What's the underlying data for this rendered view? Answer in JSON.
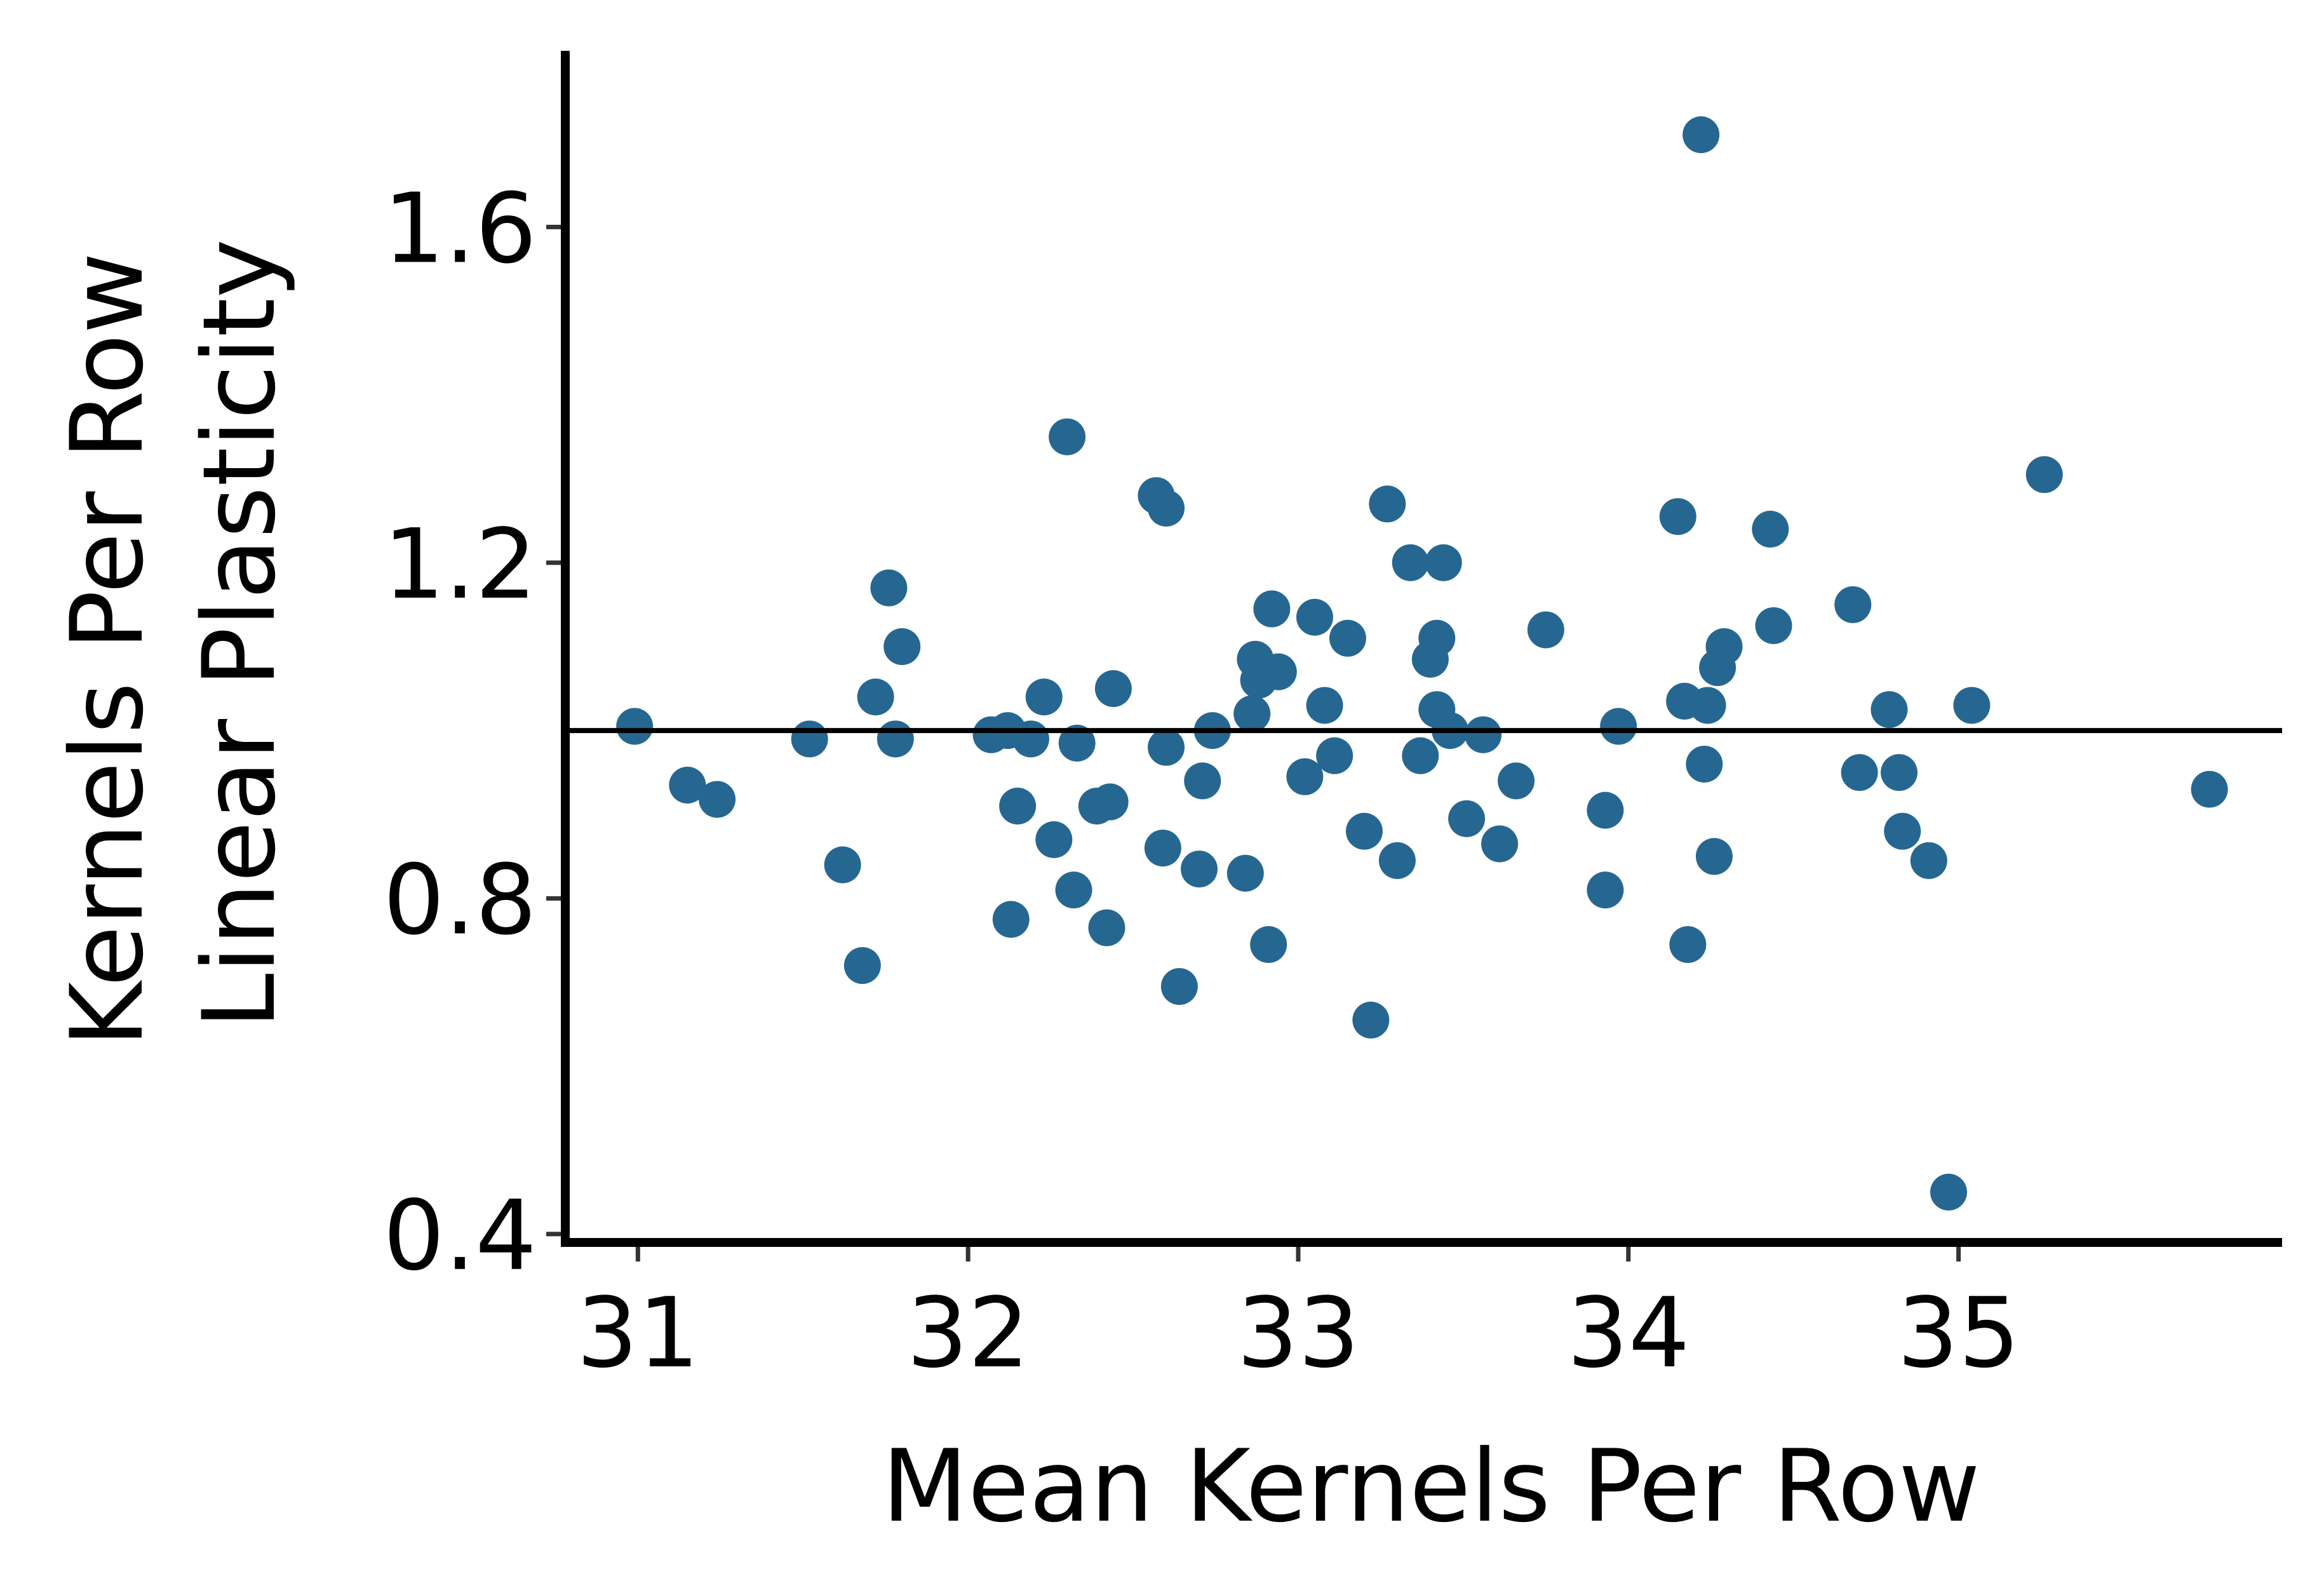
{
  "chart_data": {
    "type": "scatter",
    "xlabel": "Mean Kernels Per Row",
    "ylabel_lines": [
      "Kernels Per Row",
      "Linear Plasticity"
    ],
    "xlim": [
      30.78,
      35.98
    ],
    "ylim": [
      0.39,
      1.81
    ],
    "xticks": [
      31,
      32,
      33,
      34,
      35
    ],
    "xtick_labels": [
      "31",
      "32",
      "33",
      "34",
      "35"
    ],
    "yticks": [
      0.4,
      0.8,
      1.2,
      1.6
    ],
    "ytick_labels": [
      "0.4",
      "0.8",
      "1.2",
      "1.6"
    ],
    "reference_line_y": 1.0,
    "grid": false,
    "colors": {
      "points": "#266792",
      "axes": "#000000",
      "reference_line": "#000000"
    },
    "points": [
      {
        "x": 30.99,
        "y": 1.005
      },
      {
        "x": 31.15,
        "y": 0.935
      },
      {
        "x": 31.24,
        "y": 0.918
      },
      {
        "x": 31.52,
        "y": 0.99
      },
      {
        "x": 31.62,
        "y": 0.84
      },
      {
        "x": 31.68,
        "y": 0.72
      },
      {
        "x": 31.72,
        "y": 1.04
      },
      {
        "x": 31.76,
        "y": 1.17
      },
      {
        "x": 31.78,
        "y": 0.99
      },
      {
        "x": 31.8,
        "y": 1.1
      },
      {
        "x": 32.07,
        "y": 0.995
      },
      {
        "x": 32.12,
        "y": 1.0
      },
      {
        "x": 32.13,
        "y": 0.775
      },
      {
        "x": 32.15,
        "y": 0.91
      },
      {
        "x": 32.19,
        "y": 0.99
      },
      {
        "x": 32.23,
        "y": 1.04
      },
      {
        "x": 32.26,
        "y": 0.87
      },
      {
        "x": 32.3,
        "y": 1.35
      },
      {
        "x": 32.32,
        "y": 0.81
      },
      {
        "x": 32.33,
        "y": 0.985
      },
      {
        "x": 32.39,
        "y": 0.91
      },
      {
        "x": 32.42,
        "y": 0.765
      },
      {
        "x": 32.43,
        "y": 0.915
      },
      {
        "x": 32.44,
        "y": 1.05
      },
      {
        "x": 32.57,
        "y": 1.28
      },
      {
        "x": 32.6,
        "y": 1.265
      },
      {
        "x": 32.6,
        "y": 0.98
      },
      {
        "x": 32.59,
        "y": 0.86
      },
      {
        "x": 32.64,
        "y": 0.695
      },
      {
        "x": 32.7,
        "y": 0.835
      },
      {
        "x": 32.71,
        "y": 0.94
      },
      {
        "x": 32.74,
        "y": 1.0
      },
      {
        "x": 32.84,
        "y": 0.83
      },
      {
        "x": 32.86,
        "y": 1.02
      },
      {
        "x": 32.87,
        "y": 1.085
      },
      {
        "x": 32.88,
        "y": 1.06
      },
      {
        "x": 32.91,
        "y": 0.745
      },
      {
        "x": 32.92,
        "y": 1.145
      },
      {
        "x": 32.94,
        "y": 1.07
      },
      {
        "x": 33.02,
        "y": 0.945
      },
      {
        "x": 33.05,
        "y": 1.135
      },
      {
        "x": 33.08,
        "y": 1.03
      },
      {
        "x": 33.11,
        "y": 0.97
      },
      {
        "x": 33.15,
        "y": 1.11
      },
      {
        "x": 33.2,
        "y": 0.88
      },
      {
        "x": 33.22,
        "y": 0.655
      },
      {
        "x": 33.27,
        "y": 1.27
      },
      {
        "x": 33.3,
        "y": 0.845
      },
      {
        "x": 33.34,
        "y": 1.2
      },
      {
        "x": 33.37,
        "y": 0.97
      },
      {
        "x": 33.4,
        "y": 1.085
      },
      {
        "x": 33.42,
        "y": 1.11
      },
      {
        "x": 33.42,
        "y": 1.025
      },
      {
        "x": 33.44,
        "y": 1.2
      },
      {
        "x": 33.46,
        "y": 1.0
      },
      {
        "x": 33.51,
        "y": 0.895
      },
      {
        "x": 33.56,
        "y": 0.995
      },
      {
        "x": 33.61,
        "y": 0.865
      },
      {
        "x": 33.66,
        "y": 0.94
      },
      {
        "x": 33.75,
        "y": 1.12
      },
      {
        "x": 33.93,
        "y": 0.905
      },
      {
        "x": 33.93,
        "y": 0.81
      },
      {
        "x": 33.97,
        "y": 1.005
      },
      {
        "x": 34.15,
        "y": 1.255
      },
      {
        "x": 34.17,
        "y": 1.035
      },
      {
        "x": 34.18,
        "y": 0.745
      },
      {
        "x": 34.22,
        "y": 1.71
      },
      {
        "x": 34.23,
        "y": 0.96
      },
      {
        "x": 34.24,
        "y": 1.03
      },
      {
        "x": 34.26,
        "y": 0.85
      },
      {
        "x": 34.27,
        "y": 1.075
      },
      {
        "x": 34.29,
        "y": 1.1
      },
      {
        "x": 34.43,
        "y": 1.24
      },
      {
        "x": 34.44,
        "y": 1.125
      },
      {
        "x": 34.68,
        "y": 1.15
      },
      {
        "x": 34.7,
        "y": 0.95
      },
      {
        "x": 34.79,
        "y": 1.025
      },
      {
        "x": 34.82,
        "y": 0.95
      },
      {
        "x": 34.83,
        "y": 0.88
      },
      {
        "x": 34.91,
        "y": 0.845
      },
      {
        "x": 34.97,
        "y": 0.45
      },
      {
        "x": 35.04,
        "y": 1.03
      },
      {
        "x": 35.26,
        "y": 1.305
      },
      {
        "x": 35.76,
        "y": 0.93
      }
    ]
  }
}
